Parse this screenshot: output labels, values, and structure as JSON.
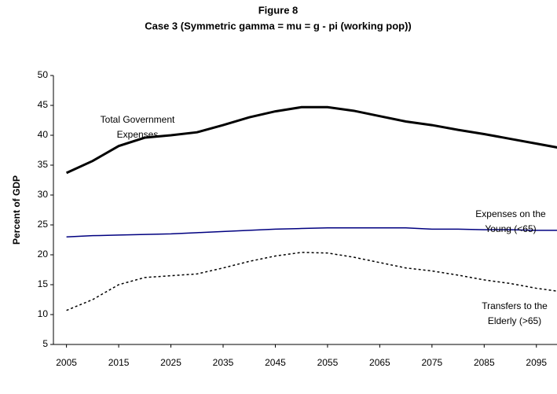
{
  "chart_data": {
    "type": "line",
    "title": "Figure 8",
    "subtitle": "Case 3 (Symmetric gamma = mu = g - pi (working pop))",
    "y_label": "Percent of GDP",
    "x": [
      2005,
      2010,
      2015,
      2020,
      2025,
      2030,
      2035,
      2040,
      2045,
      2050,
      2055,
      2060,
      2065,
      2070,
      2075,
      2080,
      2085,
      2090,
      2095,
      2100
    ],
    "series": [
      {
        "label_lines": [
          "Total Government",
          "Expenses"
        ],
        "color": "#000000",
        "width": 3,
        "dashed": false,
        "values": [
          33.7,
          35.7,
          38.2,
          39.6,
          40.0,
          40.5,
          41.7,
          43.0,
          44.0,
          44.7,
          44.7,
          44.1,
          43.2,
          42.3,
          41.7,
          40.9,
          40.2,
          39.4,
          38.6,
          37.8
        ]
      },
      {
        "label_lines": [
          "Expenses on the",
          "Young (<65)"
        ],
        "color": "#000080",
        "width": 1.5,
        "dashed": false,
        "values": [
          23.0,
          23.2,
          23.3,
          23.4,
          23.5,
          23.7,
          23.9,
          24.1,
          24.3,
          24.4,
          24.5,
          24.5,
          24.5,
          24.5,
          24.3,
          24.3,
          24.2,
          24.2,
          24.1,
          24.1
        ]
      },
      {
        "label_lines": [
          "Transfers to the",
          "Elderly (>65)"
        ],
        "color": "#000000",
        "width": 1.5,
        "dashed": true,
        "values": [
          10.7,
          12.5,
          15.0,
          16.2,
          16.5,
          16.8,
          17.8,
          18.9,
          19.8,
          20.4,
          20.3,
          19.6,
          18.7,
          17.8,
          17.3,
          16.6,
          15.8,
          15.2,
          14.4,
          13.8
        ]
      }
    ],
    "xlim": [
      2002.5,
      2100
    ],
    "xticks": [
      2005,
      2015,
      2025,
      2035,
      2045,
      2055,
      2065,
      2075,
      2085,
      2095
    ],
    "ylim": [
      5,
      50
    ],
    "yticks": [
      5,
      10,
      15,
      20,
      25,
      30,
      35,
      40,
      45,
      50
    ],
    "grid": false
  }
}
